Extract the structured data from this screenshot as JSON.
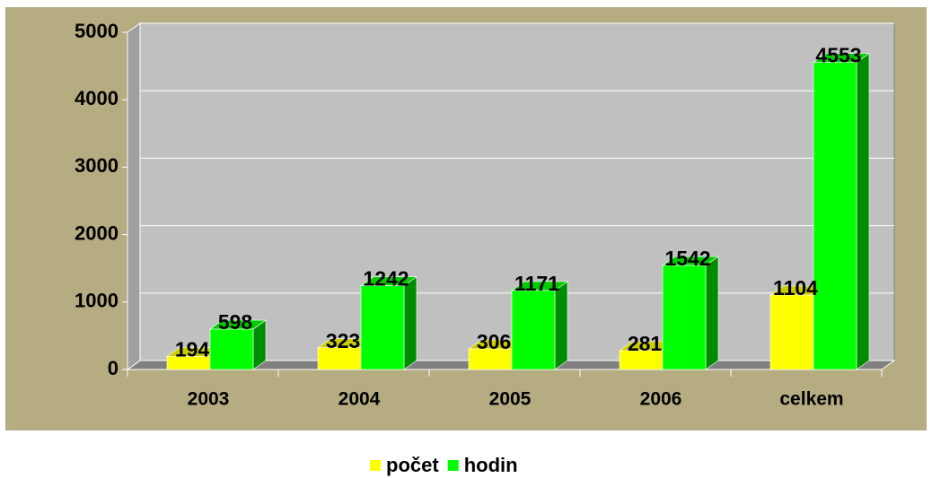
{
  "chart_data": {
    "type": "bar3d",
    "categories": [
      "2003",
      "2004",
      "2005",
      "2006",
      "celkem"
    ],
    "series": [
      {
        "name": "počet",
        "color": "#ffff00",
        "values": [
          194,
          323,
          306,
          281,
          1104
        ]
      },
      {
        "name": "hodin",
        "color": "#00ff00",
        "values": [
          598,
          1242,
          1171,
          1542,
          4553
        ]
      }
    ],
    "ylim": [
      0,
      5000
    ],
    "yticks": [
      0,
      1000,
      2000,
      3000,
      4000,
      5000
    ],
    "grid": true,
    "legend": "bottom"
  }
}
